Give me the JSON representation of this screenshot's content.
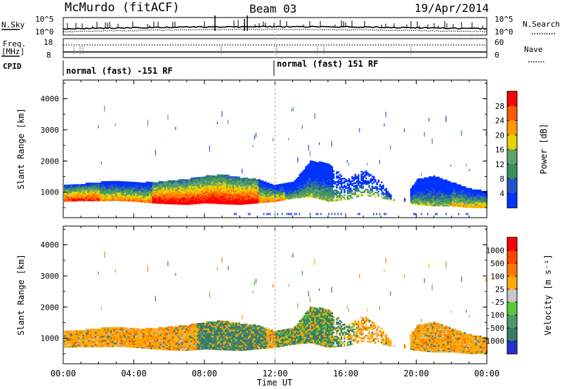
{
  "header": {
    "station": "McMurdo (fitACF)",
    "beam": "Beam 03",
    "date": "19/Apr/2014"
  },
  "top_panel": {
    "left_label": "N.Sky",
    "right_label": "N.Search",
    "left_ticks": [
      "10^5",
      "10^0"
    ],
    "right_ticks": [
      "10^5",
      "10^0"
    ],
    "freq_label_1": "Freq.",
    "freq_label_2": "[MHz]",
    "freq_ticks": [
      "18",
      "8"
    ],
    "nave_label": "Nave",
    "nave_ticks": [
      "60",
      "0"
    ],
    "cpid_label": "CPID",
    "cpid_segments": [
      "normal (fast) -151 RF",
      "normal (fast) 151 RF"
    ]
  },
  "chart_data": [
    {
      "type": "heatmap",
      "name": "power",
      "ylabel": "Slant Range [km]",
      "xlabel": "Time UT",
      "x_ticks": [
        "00:00",
        "04:00",
        "08:00",
        "12:00",
        "16:00",
        "20:00",
        "00:00"
      ],
      "x_hours": [
        0,
        4,
        8,
        12,
        16,
        20,
        24
      ],
      "y_ticks": [
        1000,
        2000,
        3000,
        4000
      ],
      "ylim": [
        180,
        4600
      ],
      "colorbar": {
        "label": "Power [dB]",
        "ticks": [
          "28",
          "24",
          "20",
          "16",
          "12",
          "8",
          "4"
        ],
        "colors": [
          "#0033ff",
          "#2255cc",
          "#3b8f5e",
          "#5fa36a",
          "#e8d200",
          "#ff9a00",
          "#ff5a00",
          "#ff0000"
        ]
      },
      "echo_band": {
        "hours": [
          0,
          1,
          2,
          3,
          4,
          5,
          6,
          7,
          8,
          9,
          10,
          11,
          12,
          13,
          14,
          15,
          16,
          17,
          18,
          19,
          20,
          21,
          22,
          23,
          24
        ],
        "lower_km": [
          700,
          720,
          720,
          730,
          700,
          650,
          620,
          600,
          650,
          620,
          600,
          650,
          700,
          800,
          850,
          700,
          750,
          900,
          800,
          700,
          600,
          550,
          550,
          500,
          500
        ],
        "upper_km": [
          1200,
          1250,
          1300,
          1350,
          1300,
          1300,
          1350,
          1400,
          1500,
          1550,
          1450,
          1400,
          1200,
          1300,
          2000,
          1900,
          1400,
          1700,
          1300,
          500,
          1400,
          1500,
          1300,
          1100,
          1000
        ]
      }
    },
    {
      "type": "heatmap",
      "name": "velocity",
      "ylabel": "Slant Range [km]",
      "xlabel": "Time UT",
      "x_ticks": [
        "00:00",
        "04:00",
        "08:00",
        "12:00",
        "16:00",
        "20:00",
        "00:00"
      ],
      "x_hours": [
        0,
        4,
        8,
        12,
        16,
        20,
        24
      ],
      "y_ticks": [
        1000,
        2000,
        3000,
        4000
      ],
      "ylim": [
        180,
        4600
      ],
      "colorbar": {
        "label": "Velocity [m s⁻¹]",
        "ticks": [
          "1000",
          "500",
          "100",
          "25",
          "-25",
          "-100",
          "-500",
          "-1000"
        ],
        "colors": [
          "#2233cc",
          "#3a7a6a",
          "#4a9a6a",
          "#55cc33",
          "#c8c8c8",
          "#ffaa00",
          "#ff7700",
          "#ff4400",
          "#ff0000"
        ]
      }
    }
  ]
}
